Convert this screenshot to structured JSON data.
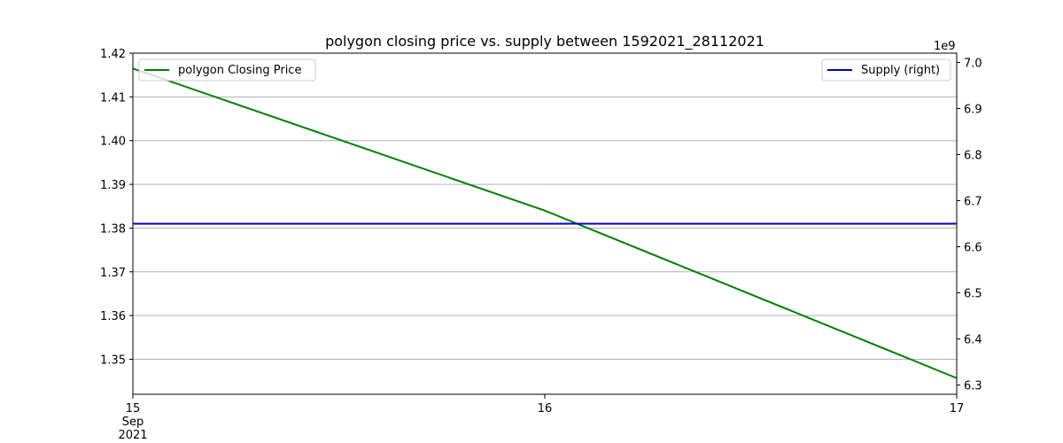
{
  "chart_data": {
    "type": "line",
    "title": "polygon closing price vs. supply between 1592021_28112021",
    "xlabel": "",
    "x": [
      "2021-09-15",
      "2021-09-16",
      "2021-09-17"
    ],
    "x_tick_labels": [
      {
        "day": "15",
        "month": "Sep",
        "year": "2021"
      },
      {
        "day": "16",
        "month": "",
        "year": ""
      },
      {
        "day": "17",
        "month": "",
        "year": ""
      }
    ],
    "y_left": {
      "label": "",
      "ylim": [
        1.342,
        1.42
      ],
      "ticks": [
        1.35,
        1.36,
        1.37,
        1.38,
        1.39,
        1.4,
        1.41,
        1.42
      ],
      "tick_labels": [
        "1.35",
        "1.36",
        "1.37",
        "1.38",
        "1.39",
        "1.40",
        "1.41",
        "1.42"
      ]
    },
    "y_right": {
      "label": "",
      "offset_text": "1e9",
      "ylim": [
        6.28,
        7.02
      ],
      "ticks": [
        6.3,
        6.4,
        6.5,
        6.6,
        6.7,
        6.8,
        6.9,
        7.0
      ],
      "tick_labels": [
        "6.3",
        "6.4",
        "6.5",
        "6.6",
        "6.7",
        "6.8",
        "6.9",
        "7.0"
      ]
    },
    "grid": true,
    "series": [
      {
        "name": "polygon Closing Price",
        "axis": "left",
        "color": "#008000",
        "values": [
          1.4165,
          1.384,
          1.3457
        ]
      },
      {
        "name": "Supply (right)",
        "axis": "right",
        "color": "#0000cc",
        "values": [
          6.65,
          6.65,
          6.65
        ]
      }
    ],
    "legends": [
      {
        "series": 0,
        "placement": "top-left"
      },
      {
        "series": 1,
        "placement": "top-right"
      }
    ]
  }
}
